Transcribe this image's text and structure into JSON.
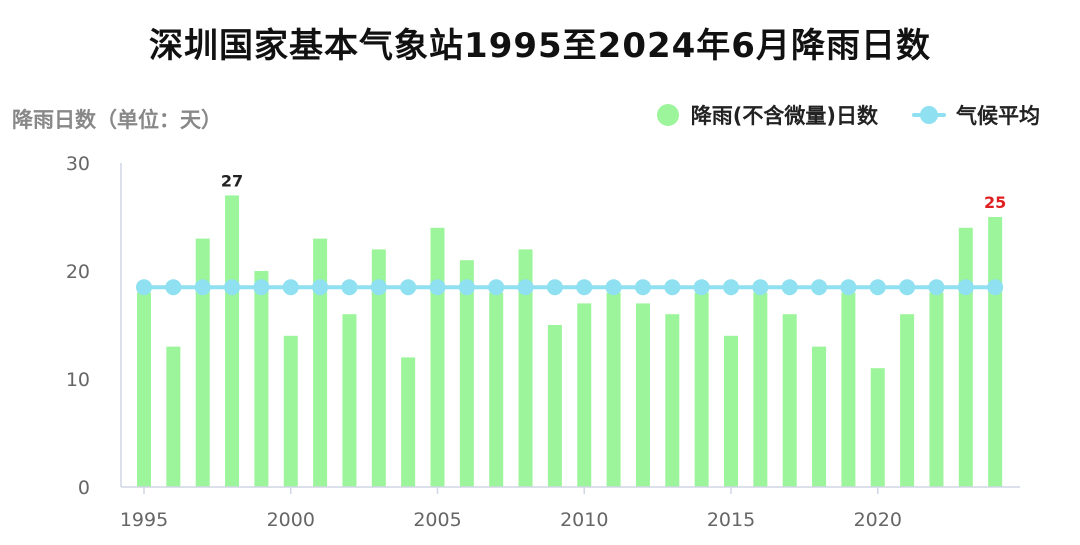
{
  "chart_data": {
    "type": "bar",
    "title": "深圳国家基本气象站1995至2024年6月降雨日数",
    "ylabel": "降雨日数（单位：天）",
    "ylim": [
      0,
      30
    ],
    "yticks": [
      0,
      10,
      20,
      30
    ],
    "xticks": [
      1995,
      2000,
      2005,
      2010,
      2015,
      2020
    ],
    "categories": [
      1995,
      1996,
      1997,
      1998,
      1999,
      2000,
      2001,
      2002,
      2003,
      2004,
      2005,
      2006,
      2007,
      2008,
      2009,
      2010,
      2011,
      2012,
      2013,
      2014,
      2015,
      2016,
      2017,
      2018,
      2019,
      2020,
      2021,
      2022,
      2023,
      2024
    ],
    "series": [
      {
        "name": "降雨(不含微量)日数",
        "type": "bar",
        "color": "#9cf59a",
        "values": [
          18,
          13,
          23,
          27,
          20,
          14,
          23,
          16,
          22,
          12,
          24,
          21,
          18,
          22,
          15,
          17,
          18,
          17,
          16,
          18,
          14,
          18,
          16,
          13,
          18,
          11,
          16,
          18,
          24,
          25
        ]
      },
      {
        "name": "气候平均",
        "type": "line",
        "color": "#8fe0f0",
        "values": [
          18.5,
          18.5,
          18.5,
          18.5,
          18.5,
          18.5,
          18.5,
          18.5,
          18.5,
          18.5,
          18.5,
          18.5,
          18.5,
          18.5,
          18.5,
          18.5,
          18.5,
          18.5,
          18.5,
          18.5,
          18.5,
          18.5,
          18.5,
          18.5,
          18.5,
          18.5,
          18.5,
          18.5,
          18.5,
          18.5
        ]
      }
    ],
    "annotations": [
      {
        "category": 1998,
        "text": "27",
        "color": "#222222"
      },
      {
        "category": 2024,
        "text": "25",
        "color": "#e02020"
      }
    ],
    "legend_position": "top-right",
    "grid": false
  }
}
